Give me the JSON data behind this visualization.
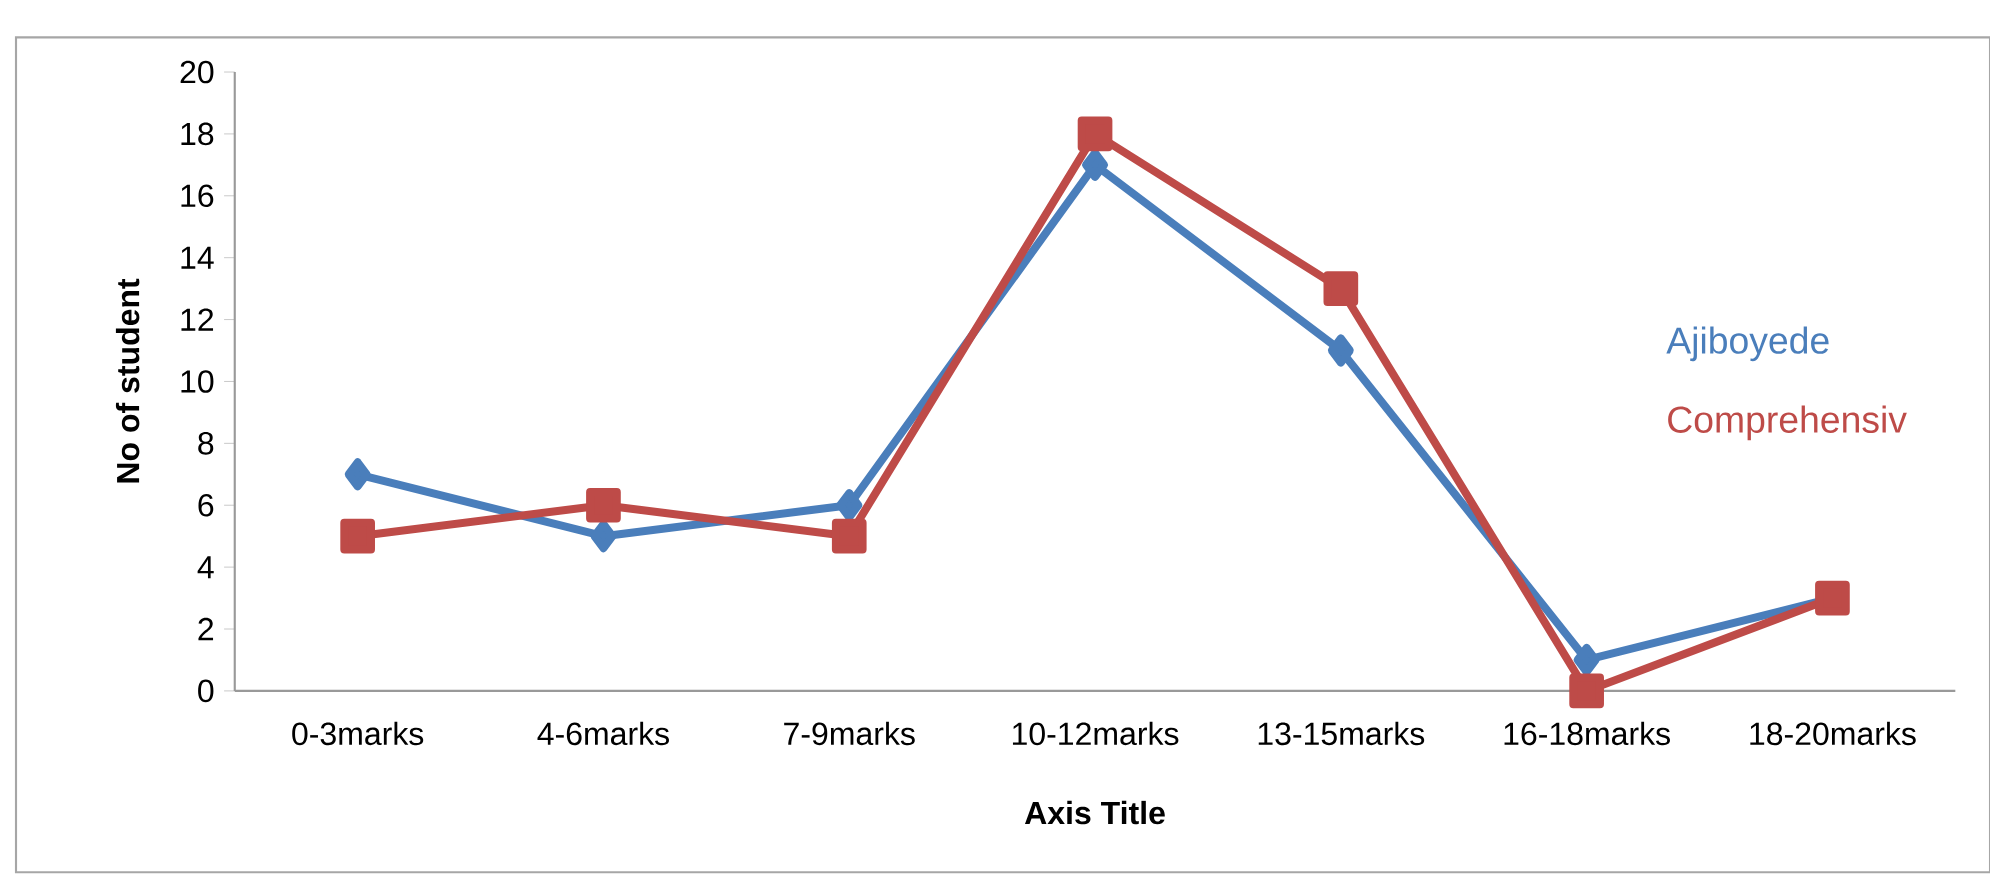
{
  "chart_data": {
    "type": "line",
    "xlabel": "Axis Title",
    "ylabel": "No of student",
    "categories": [
      "0-3marks",
      "4-6marks",
      "7-9marks",
      "10-12marks",
      "13-15marks",
      "16-18marks",
      "18-20marks"
    ],
    "series": [
      {
        "name": "Ajiboyede",
        "color": "#4a7ebb",
        "marker": "diamond",
        "values": [
          7,
          5,
          6,
          17,
          11,
          1,
          3
        ]
      },
      {
        "name": "Comprehensiv",
        "color": "#be4b48",
        "marker": "square",
        "values": [
          5,
          6,
          5,
          18,
          13,
          0,
          3
        ]
      }
    ],
    "ylim": [
      0,
      20
    ],
    "yticks": [
      0,
      2,
      4,
      6,
      8,
      10,
      12,
      14,
      16,
      18,
      20
    ],
    "grid": false,
    "legend": "right",
    "line_style": "solid"
  }
}
